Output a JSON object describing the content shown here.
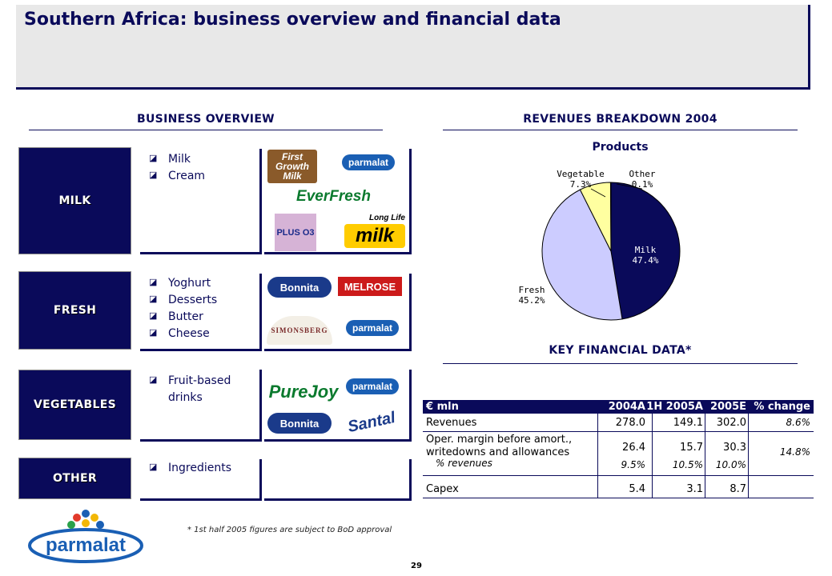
{
  "title": "Southern Africa: business overview and financial data",
  "business_overview": {
    "heading": "BUSINESS OVERVIEW",
    "categories": [
      {
        "name": "MILK",
        "items": [
          "Milk",
          "Cream"
        ]
      },
      {
        "name": "FRESH",
        "items": [
          "Yoghurt",
          "Desserts",
          "Butter",
          "Cheese"
        ]
      },
      {
        "name": "VEGETABLES",
        "items": [
          "Fruit-based",
          "drinks"
        ]
      },
      {
        "name": "OTHER",
        "items": [
          "Ingredients"
        ]
      }
    ],
    "logos": {
      "first_growth": "First Growth Milk",
      "parmalat": "parmalat",
      "everfresh": "EverFresh",
      "plus": "PLUS O3",
      "long_life": "Long Life",
      "milk": "milk",
      "bonnita": "Bonnita",
      "melrose": "MELROSE",
      "simonsberg": "SIMONSBERG",
      "purejoy": "PureJoy",
      "santal": "Santal"
    }
  },
  "revenues_breakdown": {
    "heading": "REVENUES BREAKDOWN 2004",
    "subheading": "Products"
  },
  "chart_data": {
    "type": "pie",
    "title": "Products",
    "slices": [
      {
        "label": "Milk",
        "value": 47.4,
        "display": "47.4%",
        "color": "#0a0a5a"
      },
      {
        "label": "Fresh",
        "value": 45.2,
        "display": "45.2%",
        "color": "#ccccff"
      },
      {
        "label": "Vegetable",
        "value": 7.3,
        "display": "7.3%",
        "color": "#ffffa0"
      },
      {
        "label": "Other",
        "value": 0.1,
        "display": "0.1%",
        "color": "#ffffff"
      }
    ]
  },
  "key_financial": {
    "heading": "KEY FINANCIAL DATA*",
    "header": [
      "€ mln",
      "2004A",
      "1H 2005A",
      "2005E",
      "% change"
    ],
    "rows": {
      "revenues": {
        "label": "Revenues",
        "v1": "278.0",
        "v2": "149.1",
        "v3": "302.0",
        "chg": "8.6%"
      },
      "margin": {
        "label1": "Oper. margin before amort.,",
        "label2": "writedowns and allowances",
        "v1": "26.4",
        "v2": "15.7",
        "v3": "30.3",
        "chg": "14.8%"
      },
      "pct": {
        "label": "% revenues",
        "v1": "9.5%",
        "v2": "10.5%",
        "v3": "10.0%"
      },
      "capex": {
        "label": "Capex",
        "v1": "5.4",
        "v2": "3.1",
        "v3": "8.7"
      }
    }
  },
  "footnote": "* 1st half 2005 figures are subject to BoD approval",
  "footer_logo": "parmalat",
  "page_number": "29"
}
